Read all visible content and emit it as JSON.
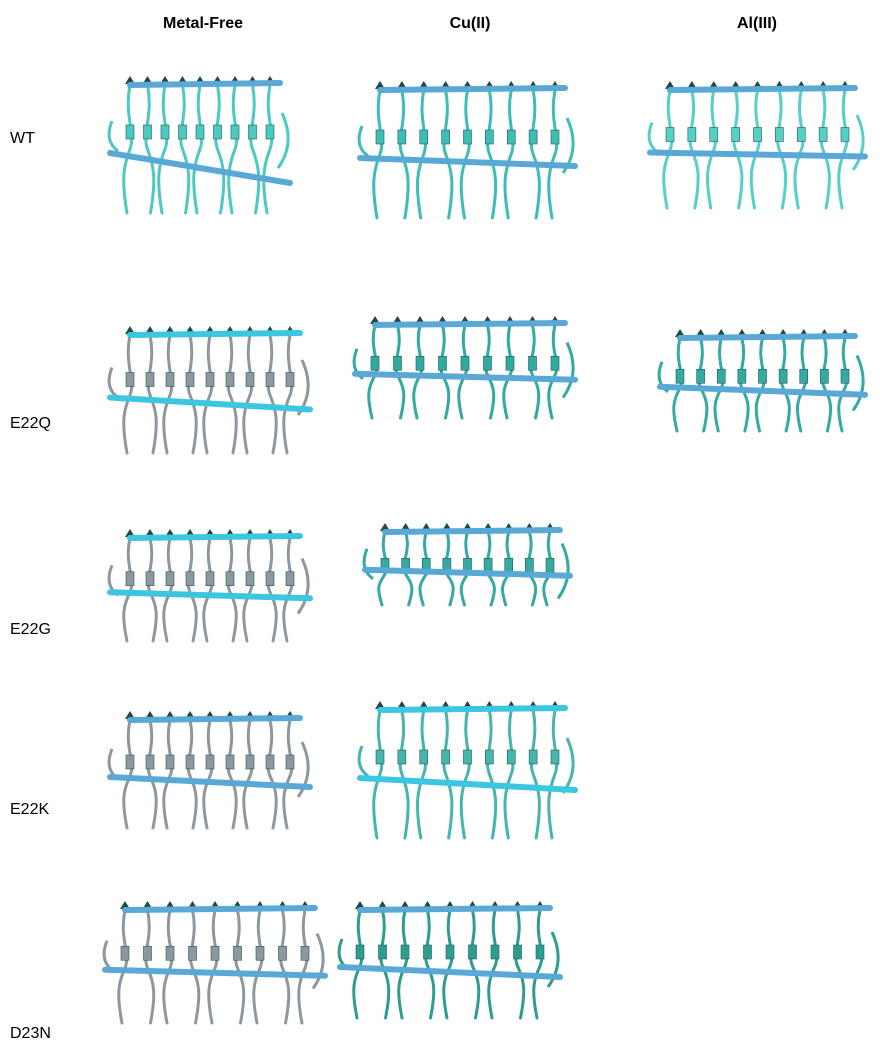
{
  "columns": [
    "Metal-Free",
    "Cu(II)",
    "Al(III)"
  ],
  "rows": [
    "WT",
    "E22Q",
    "E22G",
    "E22K",
    "D23N"
  ]
}
